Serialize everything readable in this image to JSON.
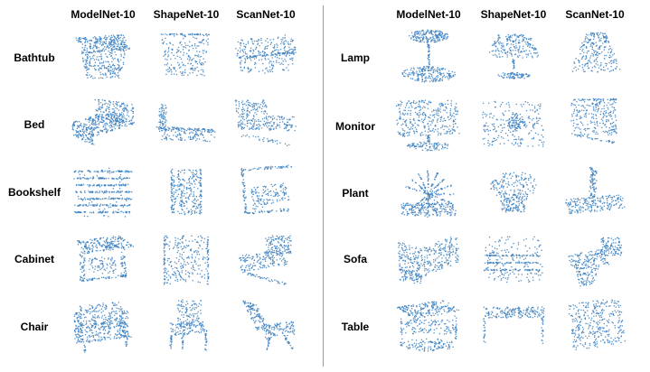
{
  "columns": [
    "ModelNet-10",
    "ShapeNet-10",
    "ScanNet-10"
  ],
  "left_panel": {
    "rows": [
      "Bathtub",
      "Bed",
      "Bookshelf",
      "Cabinet",
      "Chair"
    ]
  },
  "right_panel": {
    "rows": [
      "Lamp",
      "Monitor",
      "Plant",
      "Sofa",
      "Table"
    ]
  },
  "colors": {
    "point": "#3a7fc0",
    "divider": "#7f9fbf"
  }
}
